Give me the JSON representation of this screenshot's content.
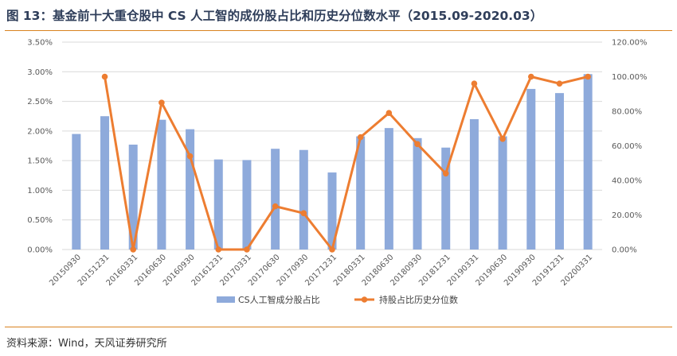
{
  "title": "图 13：基金前十大重仓股中 CS 人工智的成份股占比和历史分位数水平（2015.09-2020.03）",
  "source": "资料来源：Wind，天风证券研究所",
  "colors": {
    "bar": "#8eaadb",
    "line": "#ed7d31",
    "rule": "#d9821f"
  },
  "chart_data": {
    "type": "bar+line",
    "categories": [
      "20150930",
      "20151231",
      "20160331",
      "20160630",
      "20160930",
      "20161231",
      "20170331",
      "20170630",
      "20170930",
      "20171231",
      "20180331",
      "20180630",
      "20180930",
      "20181231",
      "20190331",
      "20190630",
      "20190930",
      "20191231",
      "20200331"
    ],
    "series": [
      {
        "name": "CS人工智成分股占比",
        "type": "bar",
        "axis": "left",
        "values": [
          1.95,
          2.25,
          1.77,
          2.19,
          2.03,
          1.52,
          1.51,
          1.7,
          1.68,
          1.3,
          1.91,
          2.05,
          1.88,
          1.72,
          2.2,
          1.91,
          2.71,
          2.64,
          2.96
        ]
      },
      {
        "name": "持股占比历史分位数",
        "type": "line",
        "axis": "right",
        "values": [
          null,
          100.0,
          0.0,
          85.0,
          54.0,
          0.0,
          0.0,
          25.0,
          21.0,
          0.0,
          65.0,
          79.0,
          61.0,
          44.0,
          96.0,
          64.0,
          100.0,
          96.0,
          100.0
        ]
      }
    ],
    "y_left": {
      "min": 0,
      "max": 3.5,
      "step": 0.5,
      "ticks": [
        "0.00%",
        "0.50%",
        "1.00%",
        "1.50%",
        "2.00%",
        "2.50%",
        "3.00%",
        "3.50%"
      ]
    },
    "y_right": {
      "min": 0,
      "max": 120,
      "step": 20,
      "ticks": [
        "0.00%",
        "20.00%",
        "40.00%",
        "60.00%",
        "80.00%",
        "100.00%",
        "120.00%"
      ]
    },
    "legend_position": "bottom",
    "grid": true
  }
}
